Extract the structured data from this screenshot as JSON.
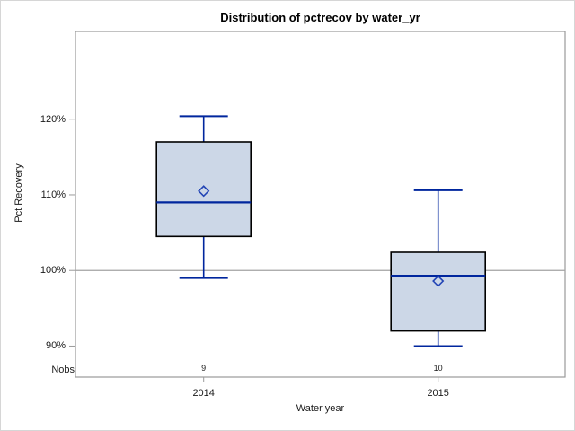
{
  "header": {
    "title": "Distribution of pctrecov by water_yr"
  },
  "chart_data": {
    "type": "boxplot",
    "title": "Distribution of pctrecov by water_yr",
    "xlabel": "Water year",
    "ylabel": "Pct Recovery",
    "nobs_label": "Nobs",
    "categories": [
      "2014",
      "2015"
    ],
    "yticks": [
      90,
      100,
      110,
      120
    ],
    "ytick_labels": [
      "90%",
      "100%",
      "110%",
      "120%"
    ],
    "ylim": [
      85.9,
      131.6
    ],
    "reference_line": 100,
    "legend": "none",
    "grid": "off",
    "series": [
      {
        "category": "2014",
        "nobs": "9",
        "whisker_low": 99.0,
        "q1": 104.5,
        "median": 109.0,
        "q3": 117.0,
        "whisker_high": 120.4,
        "mean": 110.5
      },
      {
        "category": "2015",
        "nobs": "10",
        "whisker_low": 90.0,
        "q1": 92.0,
        "median": 99.3,
        "q3": 102.4,
        "whisker_high": 110.6,
        "mean": 98.6
      }
    ],
    "colors": {
      "box_fill": "#ccd7e7",
      "box_stroke": "#000000",
      "whisker": "#00269e",
      "median": "#00269e",
      "mean_marker": "#2244b5",
      "reference_line": "#a3a3a3",
      "plot_border": "#9a9a9a",
      "text": "#1a1a1a"
    }
  }
}
